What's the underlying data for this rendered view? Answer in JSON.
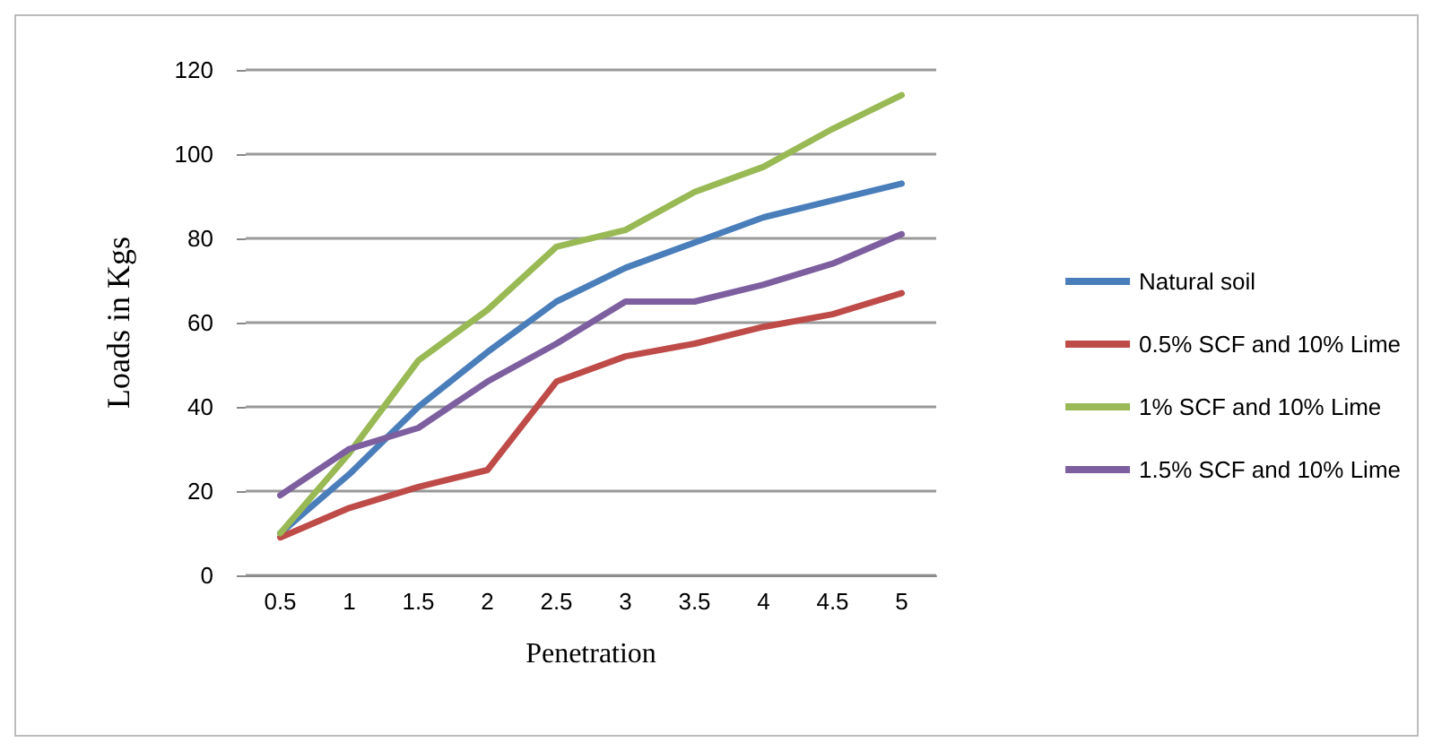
{
  "chart_data": {
    "type": "line",
    "xlabel": "Penetration",
    "ylabel": "Loads in Kgs",
    "categories": [
      "0.5",
      "1",
      "1.5",
      "2",
      "2.5",
      "3",
      "3.5",
      "4",
      "4.5",
      "5"
    ],
    "series": [
      {
        "name": "Natural soil",
        "color": "#4a7ebb",
        "values": [
          10,
          24,
          40,
          53,
          65,
          73,
          79,
          85,
          89,
          93
        ]
      },
      {
        "name": "0.5% SCF and 10% Lime",
        "color": "#be4b48",
        "values": [
          9,
          16,
          21,
          25,
          46,
          52,
          55,
          59,
          62,
          67
        ]
      },
      {
        "name": "1% SCF and 10% Lime",
        "color": "#98b954",
        "values": [
          10,
          29,
          51,
          63,
          78,
          82,
          91,
          97,
          106,
          114
        ]
      },
      {
        "name": "1.5% SCF and 10% Lime",
        "color": "#7d5fa0",
        "values": [
          19,
          30,
          35,
          46,
          55,
          65,
          65,
          69,
          74,
          81
        ]
      }
    ],
    "ylim": [
      0,
      120
    ],
    "yticks": [
      0,
      20,
      40,
      60,
      80,
      100,
      120
    ],
    "grid": "y",
    "legend": "right",
    "marker": "none",
    "line_style": "solid"
  }
}
